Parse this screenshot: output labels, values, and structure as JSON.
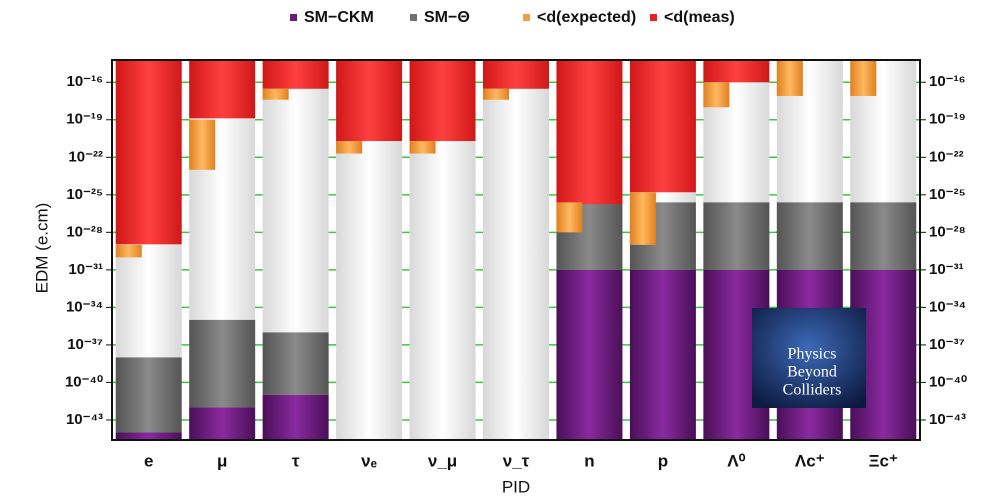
{
  "chart_data": {
    "type": "edm-levels",
    "y_label": "EDM (e.cm)",
    "x_label": "PID",
    "categories": [
      "e",
      "μ",
      "τ",
      "νₑ",
      "ν_μ",
      "ν_τ",
      "n",
      "p",
      "Λ⁰",
      "Λc⁺",
      "Ξc⁺"
    ],
    "series": [
      {
        "name": "SM−CKM",
        "color": "#6b1c7e",
        "values": [
          1e-44,
          1e-42,
          1e-41,
          null,
          null,
          null,
          1e-31,
          1e-31,
          1e-31,
          1e-31,
          1e-31
        ]
      },
      {
        "name": "SM−Θ",
        "color": "#707070",
        "values": [
          1e-38,
          1e-35,
          1e-36,
          null,
          null,
          null,
          2.5e-26,
          2.5e-26,
          2.5e-26,
          2.5e-26,
          2.5e-26
        ]
      },
      {
        "name": "<d(expected)",
        "color": "#f0a040",
        "values": [
          1e-29,
          1e-19,
          3e-17,
          2e-21,
          2e-21,
          3e-17,
          2.5e-26,
          1.6e-25,
          1e-16,
          5e-15,
          5e-15
        ],
        "lows": [
          1e-30,
          1e-23,
          4e-18,
          2e-22,
          2e-22,
          4e-18,
          1e-28,
          1e-29,
          1e-18,
          8e-18,
          8e-18
        ]
      },
      {
        "name": "<d(meas)",
        "color": "#e82222",
        "values": [
          1.1e-29,
          1.3e-19,
          3e-17,
          2e-21,
          2e-21,
          3e-17,
          1.8e-26,
          1.6e-25,
          1e-16,
          null,
          null
        ]
      }
    ],
    "log_y": true,
    "ylim": [
      2.5e-45,
      6e-15
    ],
    "yticks": [
      {
        "value": 1e-16,
        "label": "10⁻¹⁶"
      },
      {
        "value": 1e-19,
        "label": "10⁻¹⁹"
      },
      {
        "value": 1e-22,
        "label": "10⁻²²"
      },
      {
        "value": 1e-25,
        "label": "10⁻²⁵"
      },
      {
        "value": 1e-28,
        "label": "10⁻²⁸"
      },
      {
        "value": 1e-31,
        "label": "10⁻³¹"
      },
      {
        "value": 1e-34,
        "label": "10⁻³⁴"
      },
      {
        "value": 1e-37,
        "label": "10⁻³⁷"
      },
      {
        "value": 1e-40,
        "label": "10⁻⁴⁰"
      },
      {
        "value": 1e-43,
        "label": "10⁻⁴³"
      }
    ],
    "grid": true,
    "grid_color": "#3cc83c",
    "legend": "top",
    "annotations": [
      "Physics",
      "Beyond",
      "Colliders"
    ]
  }
}
